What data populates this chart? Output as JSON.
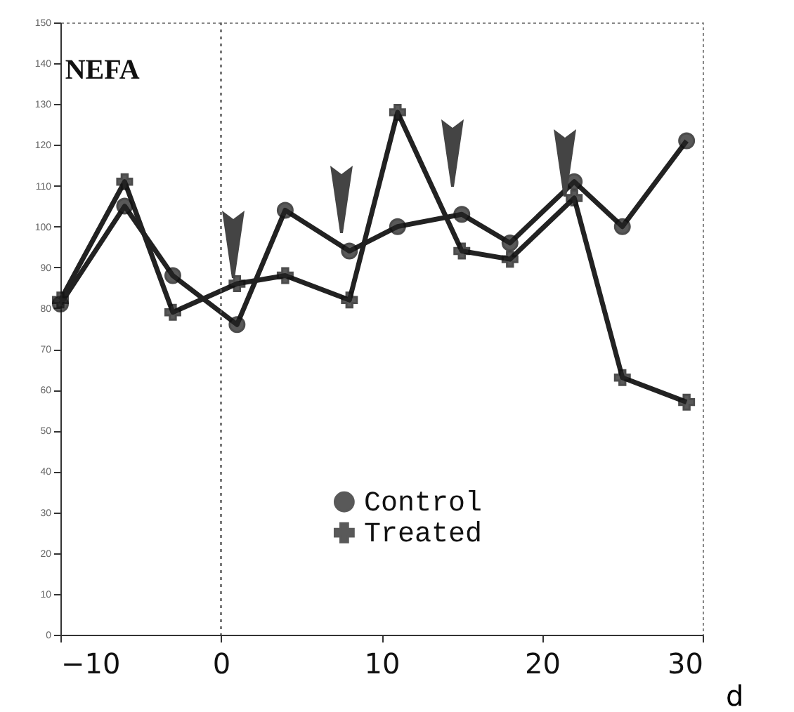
{
  "chart_data": {
    "type": "line",
    "title": "NEFA",
    "xlabel": "d",
    "x": [
      -10,
      -6,
      -3,
      1,
      4,
      8,
      11,
      15,
      18,
      22,
      25,
      29
    ],
    "series": [
      {
        "name": "Control",
        "color": "#222222",
        "marker": "circle",
        "values": [
          81,
          105,
          88,
          76,
          104,
          94,
          100,
          103,
          96,
          111,
          100,
          121
        ]
      },
      {
        "name": "Treated",
        "color": "#222222",
        "marker": "cross",
        "values": [
          82,
          111,
          79,
          86,
          88,
          82,
          128,
          94,
          92,
          107,
          63,
          57
        ]
      }
    ],
    "xlim": [
      -10,
      30
    ],
    "xticks": [
      -10,
      0,
      10,
      20,
      30
    ],
    "ylim": [
      0,
      150
    ],
    "yticks": [
      0,
      10,
      20,
      30,
      40,
      50,
      60,
      70,
      80,
      90,
      100,
      110,
      120,
      130,
      140,
      150
    ],
    "ref_lines": [
      {
        "axis": "x",
        "value": 0,
        "line_style": "dotted",
        "color": "#555555"
      }
    ],
    "legend": "bottom right",
    "grid": false,
    "line_style": "solid"
  }
}
